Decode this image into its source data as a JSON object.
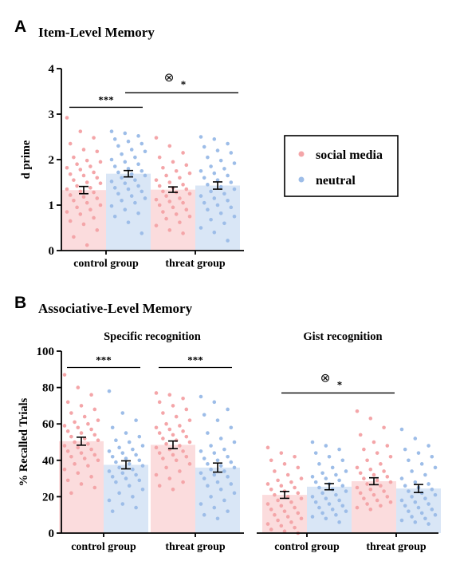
{
  "panel_a": {
    "letter": "A",
    "title": "Item-Level Memory"
  },
  "panel_b": {
    "letter": "B",
    "title": "Associative-Level Memory"
  },
  "legend": {
    "items": [
      {
        "label": "social media",
        "color": "#f4a5a8"
      },
      {
        "label": "neutral",
        "color": "#9dbde8"
      }
    ]
  },
  "colors": {
    "social_bar": "#fbdcdd",
    "neutral_bar": "#d9e6f6",
    "social_dot": "#f4a5a8",
    "neutral_dot": "#9dbde8"
  },
  "chart_data": [
    {
      "id": "item",
      "type": "bar",
      "title": "",
      "ylabel": "d prime",
      "ylim": [
        0,
        4
      ],
      "yticks": [
        "0",
        "1",
        "2",
        "3",
        "4"
      ],
      "categories": [
        "control group",
        "threat group"
      ],
      "series": [
        {
          "name": "social media",
          "values": [
            1.33,
            1.34
          ],
          "sem": [
            0.08,
            0.06
          ],
          "points": [
            [
              2.92,
              2.62,
              2.48,
              2.35,
              2.22,
              2.18,
              2.05,
              1.98,
              1.95,
              1.9,
              1.85,
              1.82,
              1.78,
              1.72,
              1.68,
              1.65,
              1.6,
              1.55,
              1.5,
              1.48,
              1.42,
              1.38,
              1.35,
              1.3,
              1.28,
              1.22,
              1.18,
              1.15,
              1.1,
              1.05,
              1.0,
              0.95,
              0.9,
              0.85,
              0.8,
              0.72,
              0.65,
              0.58,
              0.45,
              0.3,
              0.12
            ],
            [
              2.48,
              2.3,
              2.15,
              2.05,
              1.95,
              1.88,
              1.82,
              1.75,
              1.7,
              1.65,
              1.6,
              1.55,
              1.5,
              1.45,
              1.42,
              1.38,
              1.35,
              1.3,
              1.28,
              1.25,
              1.2,
              1.15,
              1.12,
              1.08,
              1.05,
              1.0,
              0.95,
              0.9,
              0.85,
              0.8,
              0.75,
              0.7,
              0.62,
              0.55,
              0.45,
              0.38
            ]
          ]
        },
        {
          "name": "neutral",
          "values": [
            1.69,
            1.43
          ],
          "sem": [
            0.07,
            0.08
          ],
          "points": [
            [
              2.62,
              2.58,
              2.52,
              2.45,
              2.4,
              2.35,
              2.3,
              2.22,
              2.18,
              2.12,
              2.05,
              2.0,
              1.95,
              1.9,
              1.85,
              1.8,
              1.75,
              1.72,
              1.68,
              1.65,
              1.6,
              1.55,
              1.52,
              1.48,
              1.42,
              1.38,
              1.35,
              1.3,
              1.25,
              1.2,
              1.15,
              1.1,
              1.05,
              0.98,
              0.9,
              0.82,
              0.75,
              0.62,
              0.38
            ],
            [
              2.5,
              2.45,
              2.35,
              2.28,
              2.2,
              2.15,
              2.05,
              1.98,
              1.92,
              1.85,
              1.8,
              1.75,
              1.7,
              1.65,
              1.6,
              1.55,
              1.5,
              1.45,
              1.4,
              1.35,
              1.3,
              1.25,
              1.2,
              1.15,
              1.1,
              1.05,
              1.0,
              0.95,
              0.9,
              0.82,
              0.75,
              0.68,
              0.6,
              0.5,
              0.4,
              0.22
            ]
          ]
        }
      ],
      "annotations": [
        {
          "text": "***",
          "from_cat": 0,
          "from_series": 0,
          "to_cat": 0,
          "to_series": 1,
          "y": 3.15
        },
        {
          "text": "*",
          "marker": "⊗",
          "from_cat": 0,
          "from_series": 1,
          "to_cat": 1,
          "to_series": 1,
          "y": 3.47
        }
      ]
    },
    {
      "id": "specific",
      "type": "bar",
      "title": "Specific recognition",
      "ylabel": "% Recalled Trials",
      "ylim": [
        0,
        100
      ],
      "yticks": [
        "0",
        "20",
        "40",
        "60",
        "80",
        "100"
      ],
      "categories": [
        "control group",
        "threat group"
      ],
      "series": [
        {
          "name": "social media",
          "values": [
            50.5,
            48.5
          ],
          "sem": [
            2.2,
            2.1
          ],
          "points": [
            [
              87,
              80,
              76,
              72,
              70,
              68,
              66,
              64,
              62,
              61,
              60,
              59,
              58,
              57,
              56,
              55,
              54,
              53,
              52,
              51,
              50,
              49,
              48,
              47,
              46,
              45,
              44,
              43,
              42,
              41,
              40,
              38,
              37,
              35,
              33,
              31,
              29,
              27,
              25,
              22
            ],
            [
              77,
              76,
              74,
              72,
              70,
              68,
              66,
              64,
              62,
              60,
              59,
              58,
              57,
              56,
              55,
              54,
              53,
              52,
              51,
              50,
              49,
              48,
              47,
              46,
              45,
              44,
              43,
              42,
              41,
              40,
              38,
              36,
              34,
              32,
              30,
              28,
              26,
              24
            ]
          ]
        },
        {
          "name": "neutral",
          "values": [
            37.5,
            36
          ],
          "sem": [
            2.2,
            2.5
          ],
          "points": [
            [
              78,
              66,
              62,
              58,
              55,
              53,
              51,
              50,
              48,
              47,
              46,
              45,
              44,
              43,
              42,
              41,
              40,
              39,
              38,
              37,
              36,
              35,
              34,
              33,
              32,
              31,
              30,
              29,
              28,
              26,
              24,
              22,
              20,
              18,
              16,
              14,
              12
            ],
            [
              75,
              72,
              68,
              65,
              62,
              58,
              55,
              52,
              50,
              48,
              46,
              45,
              44,
              42,
              41,
              40,
              39,
              38,
              37,
              36,
              35,
              34,
              33,
              32,
              31,
              30,
              28,
              27,
              26,
              24,
              22,
              20,
              18,
              16,
              14,
              12,
              10,
              8
            ]
          ]
        }
      ],
      "annotations": [
        {
          "text": "***",
          "from_cat": 0,
          "from_series": 0,
          "to_cat": 0,
          "to_series": 1,
          "y": 91
        },
        {
          "text": "***",
          "from_cat": 1,
          "from_series": 0,
          "to_cat": 1,
          "to_series": 1,
          "y": 91
        }
      ]
    },
    {
      "id": "gist",
      "type": "bar",
      "title": "Gist recognition",
      "ylabel": "",
      "ylim": [
        0,
        100
      ],
      "categories": [
        "control group",
        "threat group"
      ],
      "series": [
        {
          "name": "social media",
          "values": [
            21,
            28.5
          ],
          "sem": [
            1.9,
            1.9
          ],
          "points": [
            [
              47,
              44,
              42,
              40,
              38,
              36,
              34,
              32,
              30,
              29,
              28,
              27,
              26,
              25,
              24,
              23,
              22,
              21,
              20,
              19,
              18,
              17,
              16,
              15,
              14,
              13,
              12,
              11,
              10,
              9,
              8,
              7,
              6,
              5,
              4,
              3,
              2,
              1,
              0
            ],
            [
              67,
              63,
              58,
              54,
              50,
              48,
              46,
              44,
              42,
              40,
              38,
              36,
              35,
              34,
              33,
              32,
              31,
              30,
              29,
              28,
              27,
              26,
              25,
              24,
              23,
              22,
              21,
              20,
              19,
              18,
              17,
              16,
              15,
              14,
              13
            ]
          ]
        },
        {
          "name": "neutral",
          "values": [
            25.5,
            24.5
          ],
          "sem": [
            1.7,
            2.2
          ],
          "points": [
            [
              50,
              48,
              46,
              44,
              42,
              40,
              38,
              36,
              34,
              33,
              32,
              31,
              30,
              29,
              28,
              27,
              26,
              25,
              24,
              23,
              22,
              21,
              20,
              19,
              18,
              17,
              16,
              15,
              14,
              13,
              12,
              11,
              10,
              9,
              8,
              6
            ],
            [
              57,
              52,
              48,
              46,
              44,
              42,
              40,
              38,
              36,
              34,
              32,
              30,
              28,
              27,
              26,
              25,
              24,
              23,
              22,
              21,
              20,
              19,
              18,
              17,
              16,
              15,
              14,
              13,
              12,
              11,
              10,
              9,
              8,
              7,
              6,
              5
            ]
          ]
        }
      ],
      "annotations": [
        {
          "text": "*",
          "marker": "⊗",
          "from_cat": 0,
          "from_series": 0,
          "to_cat": 1,
          "to_series": 0,
          "y": 77
        }
      ]
    }
  ]
}
